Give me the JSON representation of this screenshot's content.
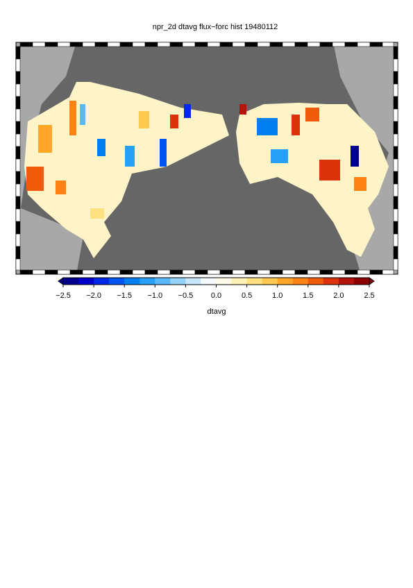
{
  "title": "npr_2d dtavg flux−forc hist 19480112",
  "colorbar": {
    "label": "dtavg",
    "lim": [
      -2.5,
      2.5
    ],
    "ticks": [
      {
        "value": -2.5,
        "label": "−2.5"
      },
      {
        "value": -2,
        "label": "−2.0"
      },
      {
        "value": -1.5,
        "label": "−1.5"
      },
      {
        "value": -1,
        "label": "−1.0"
      },
      {
        "value": -0.5,
        "label": "−0.5"
      },
      {
        "value": 0,
        "label": "0.0"
      },
      0.5,
      {
        "value": 1,
        "label": "1.0"
      },
      1.5,
      {
        "value": 2,
        "label": "2.0"
      },
      2.5
    ],
    "colors": [
      "#00008c",
      "#0000c8",
      "#0028e6",
      "#0055f0",
      "#0080f0",
      "#28a0f5",
      "#5ab9fa",
      "#96d2fa",
      "#c8e6fa",
      "#f5faff",
      "#fffbe6",
      "#fff0b4",
      "#ffe182",
      "#ffc850",
      "#ffa528",
      "#ff8214",
      "#f05a0a",
      "#dc320a",
      "#b4140a",
      "#8c0000"
    ]
  }
}
